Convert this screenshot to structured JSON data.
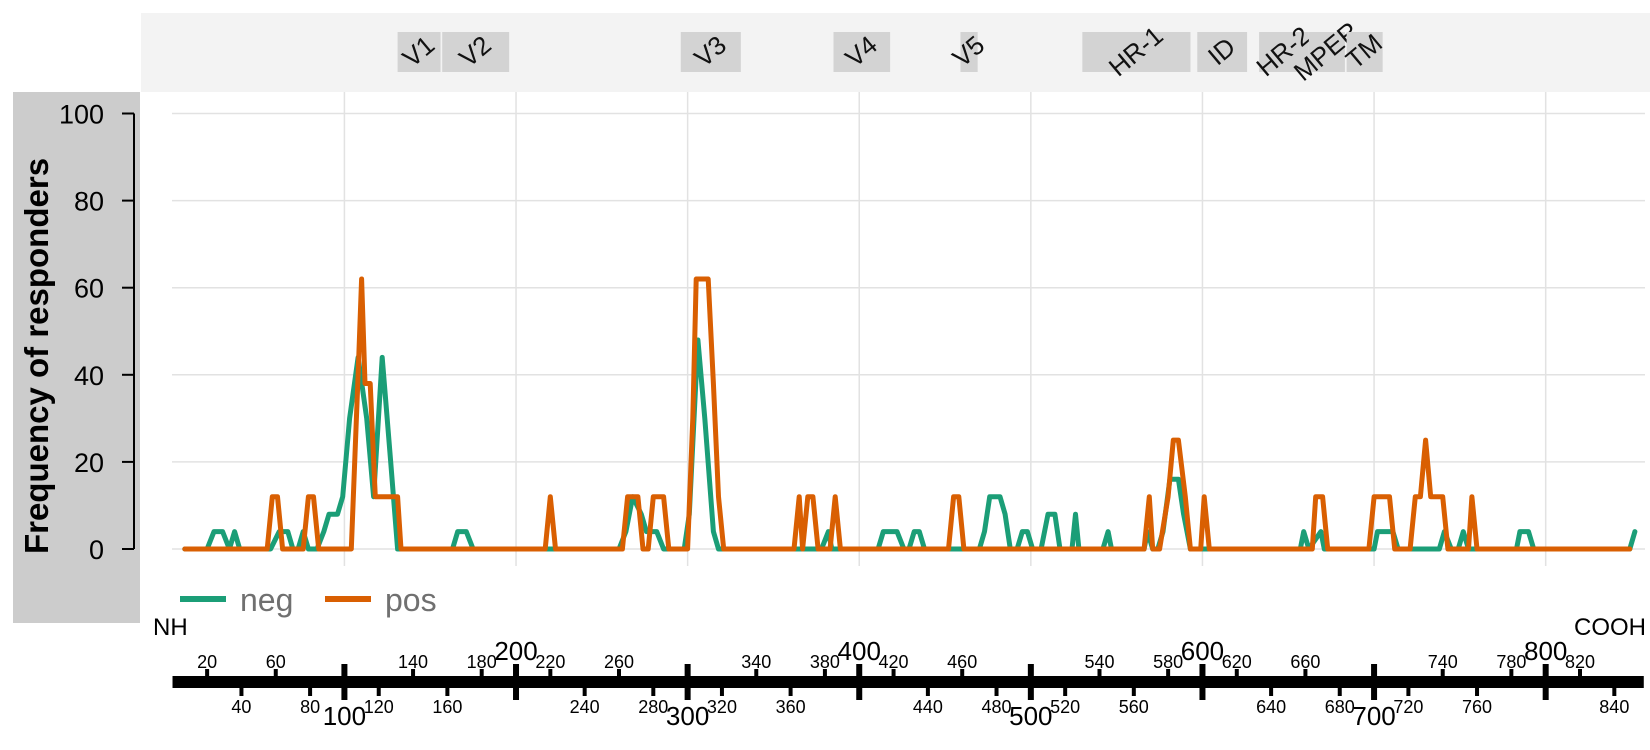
{
  "chart_data": {
    "type": "line",
    "ylabel": "Frequency of responders",
    "xlabel": "",
    "ylim": [
      0,
      100
    ],
    "xlim": [
      1,
      856
    ],
    "y_ticks": [
      0,
      20,
      40,
      60,
      80,
      100
    ],
    "grid": true,
    "legend_position": "bottom-left",
    "x_label_left": "NH",
    "x_label_right": "COOH",
    "x_grid": [
      100,
      200,
      300,
      400,
      500,
      600,
      700,
      800
    ],
    "ruler_major": [
      100,
      200,
      300,
      400,
      500,
      600,
      700,
      800
    ],
    "ruler_minor_top": [
      20,
      60,
      140,
      180,
      220,
      260,
      340,
      380,
      420,
      460,
      540,
      580,
      620,
      660,
      740,
      780,
      820
    ],
    "ruler_minor_bottom": [
      40,
      80,
      120,
      160,
      240,
      280,
      320,
      360,
      440,
      480,
      520,
      560,
      640,
      680,
      720,
      760,
      840
    ],
    "regions": [
      {
        "name": "V1",
        "start": 131,
        "end": 156
      },
      {
        "name": "V2",
        "start": 157,
        "end": 196
      },
      {
        "name": "V3",
        "start": 296,
        "end": 331
      },
      {
        "name": "V4",
        "start": 385,
        "end": 418
      },
      {
        "name": "V5",
        "start": 459,
        "end": 469
      },
      {
        "name": "HR-1",
        "start": 530,
        "end": 593
      },
      {
        "name": "ID",
        "start": 597,
        "end": 626
      },
      {
        "name": "HR-2",
        "start": 633,
        "end": 662
      },
      {
        "name": "MPER",
        "start": 662,
        "end": 683
      },
      {
        "name": "TM",
        "start": 684,
        "end": 705
      }
    ],
    "series": [
      {
        "name": "neg",
        "color": "#1b9e77",
        "points": [
          [
            7,
            0
          ],
          [
            20,
            0
          ],
          [
            24,
            4
          ],
          [
            29,
            4
          ],
          [
            33,
            0
          ],
          [
            36,
            4
          ],
          [
            39,
            0
          ],
          [
            57,
            0
          ],
          [
            62,
            4
          ],
          [
            67,
            4
          ],
          [
            70,
            0
          ],
          [
            73,
            0
          ],
          [
            76,
            4
          ],
          [
            79,
            0
          ],
          [
            84,
            0
          ],
          [
            88,
            4
          ],
          [
            91,
            8
          ],
          [
            96,
            8
          ],
          [
            99,
            12
          ],
          [
            103,
            30
          ],
          [
            108,
            44
          ],
          [
            113,
            30
          ],
          [
            117,
            12
          ],
          [
            122,
            44
          ],
          [
            127,
            20
          ],
          [
            131,
            0
          ],
          [
            163,
            0
          ],
          [
            166,
            4
          ],
          [
            171,
            4
          ],
          [
            175,
            0
          ],
          [
            260,
            0
          ],
          [
            264,
            4
          ],
          [
            268,
            12
          ],
          [
            273,
            8
          ],
          [
            276,
            4
          ],
          [
            282,
            4
          ],
          [
            286,
            0
          ],
          [
            298,
            0
          ],
          [
            301,
            8
          ],
          [
            306,
            48
          ],
          [
            310,
            30
          ],
          [
            315,
            4
          ],
          [
            318,
            0
          ],
          [
            378,
            0
          ],
          [
            382,
            4
          ],
          [
            384,
            0
          ],
          [
            411,
            0
          ],
          [
            414,
            4
          ],
          [
            422,
            4
          ],
          [
            426,
            0
          ],
          [
            429,
            0
          ],
          [
            432,
            4
          ],
          [
            435,
            4
          ],
          [
            438,
            0
          ],
          [
            470,
            0
          ],
          [
            473,
            4
          ],
          [
            476,
            12
          ],
          [
            482,
            12
          ],
          [
            485,
            8
          ],
          [
            488,
            0
          ],
          [
            492,
            0
          ],
          [
            495,
            4
          ],
          [
            498,
            4
          ],
          [
            501,
            0
          ],
          [
            506,
            0
          ],
          [
            510,
            8
          ],
          [
            514,
            8
          ],
          [
            517,
            0
          ],
          [
            524,
            0
          ],
          [
            526,
            8
          ],
          [
            528,
            0
          ],
          [
            542,
            0
          ],
          [
            545,
            4
          ],
          [
            547,
            0
          ],
          [
            566,
            0
          ],
          [
            568,
            4
          ],
          [
            571,
            0
          ],
          [
            574,
            0
          ],
          [
            577,
            4
          ],
          [
            581,
            16
          ],
          [
            586,
            16
          ],
          [
            589,
            8
          ],
          [
            593,
            0
          ],
          [
            657,
            0
          ],
          [
            659,
            4
          ],
          [
            662,
            0
          ],
          [
            669,
            4
          ],
          [
            671,
            0
          ],
          [
            700,
            0
          ],
          [
            702,
            4
          ],
          [
            711,
            4
          ],
          [
            714,
            0
          ],
          [
            738,
            0
          ],
          [
            741,
            4
          ],
          [
            745,
            0
          ],
          [
            749,
            0
          ],
          [
            752,
            4
          ],
          [
            755,
            0
          ],
          [
            783,
            0
          ],
          [
            785,
            4
          ],
          [
            790,
            4
          ],
          [
            793,
            0
          ],
          [
            849,
            0
          ],
          [
            852,
            4
          ]
        ]
      },
      {
        "name": "pos",
        "color": "#d95f02",
        "points": [
          [
            7,
            0
          ],
          [
            55,
            0
          ],
          [
            58,
            12
          ],
          [
            61,
            12
          ],
          [
            64,
            0
          ],
          [
            76,
            0
          ],
          [
            79,
            12
          ],
          [
            82,
            12
          ],
          [
            85,
            0
          ],
          [
            104,
            0
          ],
          [
            108,
            40
          ],
          [
            110,
            62
          ],
          [
            112,
            38
          ],
          [
            115,
            38
          ],
          [
            118,
            12
          ],
          [
            127,
            12
          ],
          [
            131,
            12
          ],
          [
            133,
            0
          ],
          [
            217,
            0
          ],
          [
            220,
            12
          ],
          [
            223,
            0
          ],
          [
            262,
            0
          ],
          [
            265,
            12
          ],
          [
            271,
            12
          ],
          [
            274,
            0
          ],
          [
            277,
            0
          ],
          [
            280,
            12
          ],
          [
            286,
            12
          ],
          [
            289,
            0
          ],
          [
            300,
            0
          ],
          [
            303,
            30
          ],
          [
            305,
            62
          ],
          [
            312,
            62
          ],
          [
            315,
            38
          ],
          [
            318,
            12
          ],
          [
            321,
            0
          ],
          [
            352,
            0
          ],
          [
            362,
            0
          ],
          [
            365,
            12
          ],
          [
            367,
            0
          ],
          [
            370,
            12
          ],
          [
            373,
            12
          ],
          [
            376,
            0
          ],
          [
            383,
            0
          ],
          [
            386,
            12
          ],
          [
            389,
            0
          ],
          [
            452,
            0
          ],
          [
            455,
            12
          ],
          [
            458,
            12
          ],
          [
            461,
            0
          ],
          [
            566,
            0
          ],
          [
            569,
            12
          ],
          [
            571,
            0
          ],
          [
            575,
            0
          ],
          [
            580,
            12
          ],
          [
            583,
            25
          ],
          [
            586,
            25
          ],
          [
            590,
            12
          ],
          [
            593,
            0
          ],
          [
            599,
            0
          ],
          [
            601,
            12
          ],
          [
            604,
            0
          ],
          [
            664,
            0
          ],
          [
            666,
            12
          ],
          [
            670,
            12
          ],
          [
            673,
            0
          ],
          [
            697,
            0
          ],
          [
            700,
            12
          ],
          [
            709,
            12
          ],
          [
            712,
            0
          ],
          [
            721,
            0
          ],
          [
            724,
            12
          ],
          [
            727,
            12
          ],
          [
            730,
            25
          ],
          [
            733,
            12
          ],
          [
            740,
            12
          ],
          [
            743,
            0
          ],
          [
            755,
            0
          ],
          [
            757,
            12
          ],
          [
            760,
            0
          ],
          [
            849,
            0
          ]
        ]
      }
    ]
  }
}
